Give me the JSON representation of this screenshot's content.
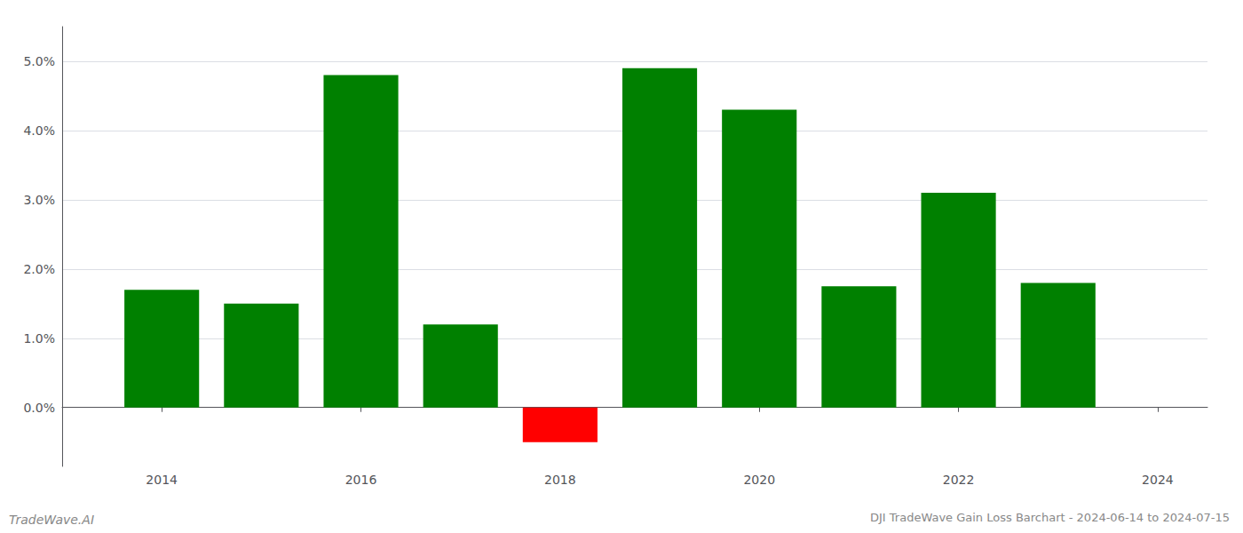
{
  "chart_data": {
    "type": "bar",
    "title": "DJI TradeWave Gain Loss Barchart - 2024-06-14 to 2024-07-15",
    "annotations": [
      "TradeWave.AI"
    ],
    "x": [
      2014,
      2015,
      2016,
      2017,
      2018,
      2019,
      2020,
      2021,
      2022,
      2023
    ],
    "values": [
      0.017,
      0.015,
      0.048,
      0.012,
      -0.005,
      0.049,
      0.043,
      0.0175,
      0.031,
      0.018
    ],
    "colors": [
      "#008000",
      "#008000",
      "#008000",
      "#008000",
      "#ff0000",
      "#008000",
      "#008000",
      "#008000",
      "#008000",
      "#008000"
    ],
    "xlim": [
      2013.0,
      2024.5
    ],
    "xticks": [
      2014,
      2016,
      2018,
      2020,
      2022,
      2024
    ],
    "ylim": [
      -0.0085,
      0.055
    ],
    "yticks": [
      {
        "value": 0.0,
        "label": "0.0%"
      },
      {
        "value": 0.01,
        "label": "1.0%"
      },
      {
        "value": 0.02,
        "label": "2.0%"
      },
      {
        "value": 0.03,
        "label": "3.0%"
      },
      {
        "value": 0.04,
        "label": "4.0%"
      },
      {
        "value": 0.05,
        "label": "5.0%"
      }
    ],
    "grid": true
  }
}
